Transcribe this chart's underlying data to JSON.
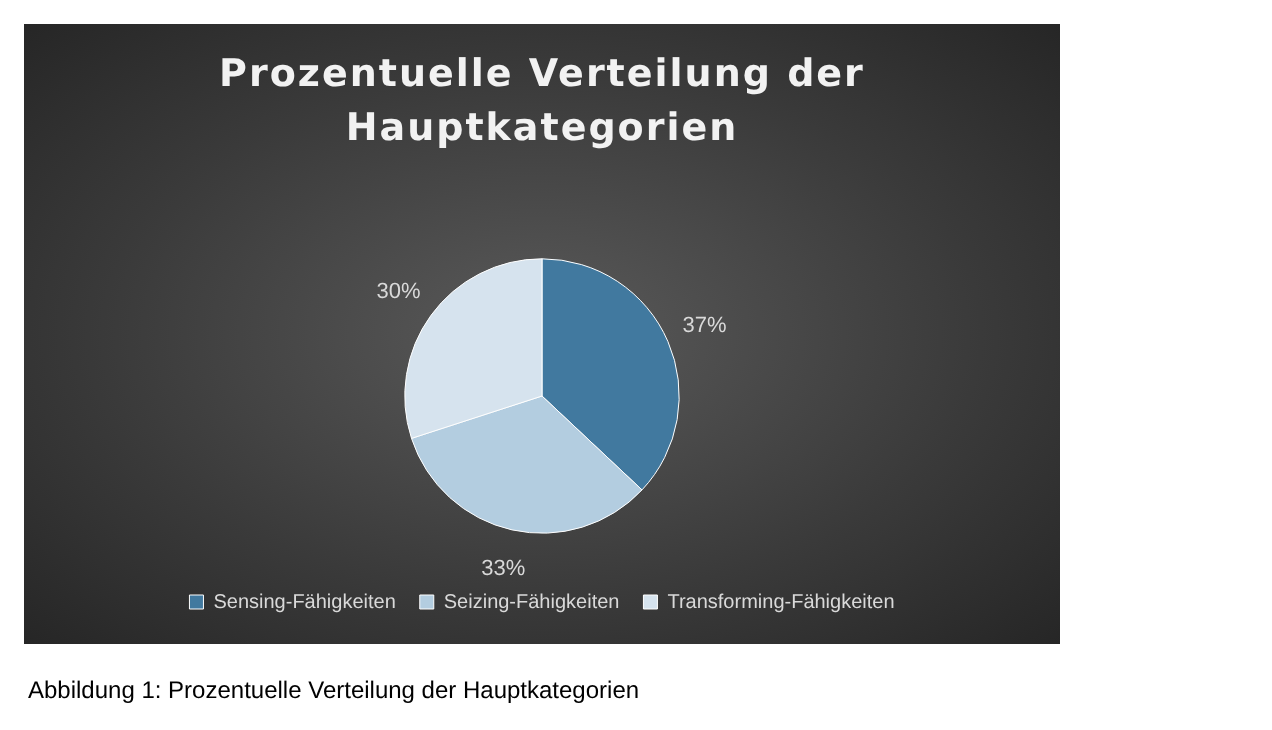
{
  "chart_data": {
    "type": "pie",
    "title": "Prozentuelle Verteilung der Hauptkategorien",
    "categories": [
      "Sensing-Fähigkeiten",
      "Seizing-Fähigkeiten",
      "Transforming-Fähigkeiten"
    ],
    "values": [
      37,
      33,
      30
    ],
    "colors": [
      "#41799f",
      "#b3cde0",
      "#d6e3ee"
    ],
    "value_labels": [
      "37%",
      "33%",
      "30%"
    ],
    "legend": "bottom",
    "annotations": [
      "Abbildung 1: Prozentuelle Verteilung der Hauptkategorien"
    ]
  }
}
